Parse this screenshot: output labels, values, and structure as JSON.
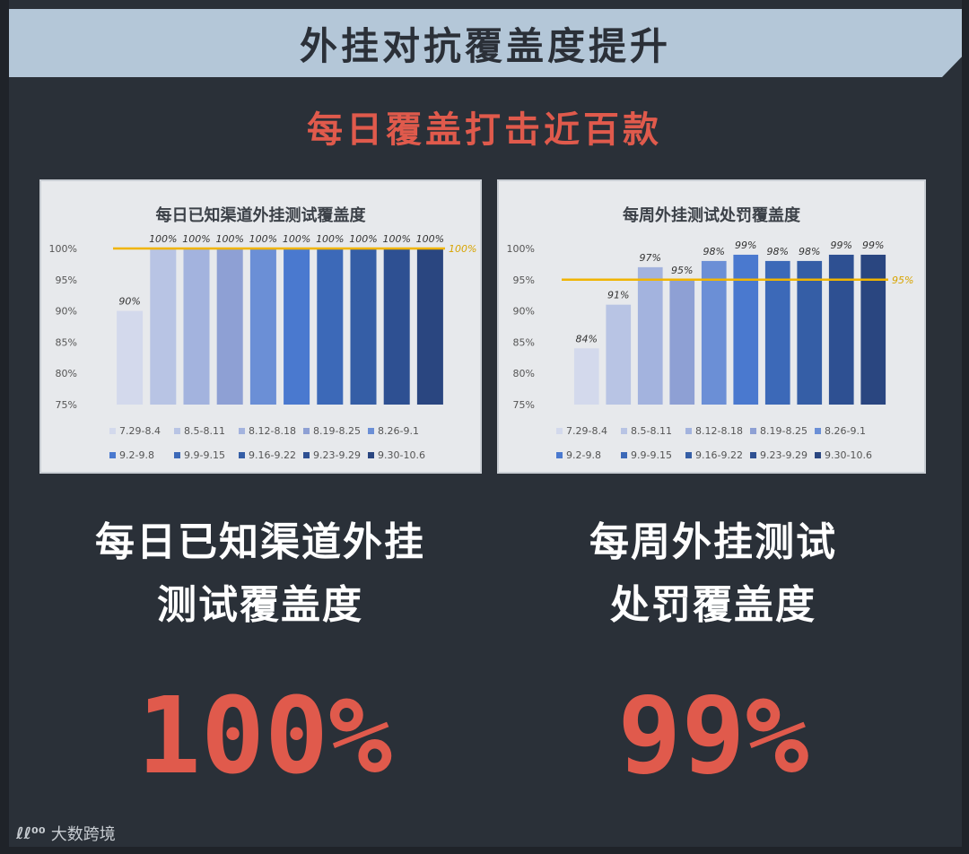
{
  "header": {
    "title": "外挂对抗覆盖度提升"
  },
  "subtitle": "每日覆盖打击近百款",
  "left": {
    "caption_line1": "每日已知渠道外挂",
    "caption_line2": "测试覆盖度",
    "big_value": "100%"
  },
  "right": {
    "caption_line1": "每周外挂测试",
    "caption_line2": "处罚覆盖度",
    "big_value": "99%"
  },
  "watermark": {
    "logo": "ℓℓ⁰⁰",
    "text": "大数跨境"
  },
  "colors": {
    "series": [
      "#d3d9ec",
      "#b8c4e4",
      "#a3b3de",
      "#8ea0d4",
      "#6b8fd6",
      "#4a79cf",
      "#3c69b8",
      "#355ea6",
      "#2e5092",
      "#2a4680"
    ],
    "reference": "#f0b400",
    "accent": "#e05a4c"
  },
  "chart_data": [
    {
      "type": "bar",
      "title": "每日已知渠道外挂测试覆盖度",
      "categories": [
        "7.29-8.4",
        "8.5-8.11",
        "8.12-8.18",
        "8.19-8.25",
        "8.26-9.1",
        "9.2-9.8",
        "9.9-9.15",
        "9.16-9.22",
        "9.23-9.29",
        "9.30-10.6"
      ],
      "values": [
        90,
        100,
        100,
        100,
        100,
        100,
        100,
        100,
        100,
        100
      ],
      "value_labels": [
        "90%",
        "100%",
        "100%",
        "100%",
        "100%",
        "100%",
        "100%",
        "100%",
        "100%",
        "100%"
      ],
      "ylim": [
        75,
        100
      ],
      "yticks": [
        "75%",
        "80%",
        "85%",
        "90%",
        "95%",
        "100%"
      ],
      "reference_line": {
        "value": 100,
        "label": "100%"
      },
      "legend": "bottom"
    },
    {
      "type": "bar",
      "title": "每周外挂测试处罚覆盖度",
      "categories": [
        "7.29-8.4",
        "8.5-8.11",
        "8.12-8.18",
        "8.19-8.25",
        "8.26-9.1",
        "9.2-9.8",
        "9.9-9.15",
        "9.16-9.22",
        "9.23-9.29",
        "9.30-10.6"
      ],
      "values": [
        84,
        91,
        97,
        95,
        98,
        99,
        98,
        98,
        99,
        99
      ],
      "value_labels": [
        "84%",
        "91%",
        "97%",
        "95%",
        "98%",
        "99%",
        "98%",
        "98%",
        "99%",
        "99%"
      ],
      "ylim": [
        75,
        100
      ],
      "yticks": [
        "75%",
        "80%",
        "85%",
        "90%",
        "95%",
        "100%"
      ],
      "reference_line": {
        "value": 95,
        "label": "95%"
      },
      "legend": "bottom"
    }
  ]
}
